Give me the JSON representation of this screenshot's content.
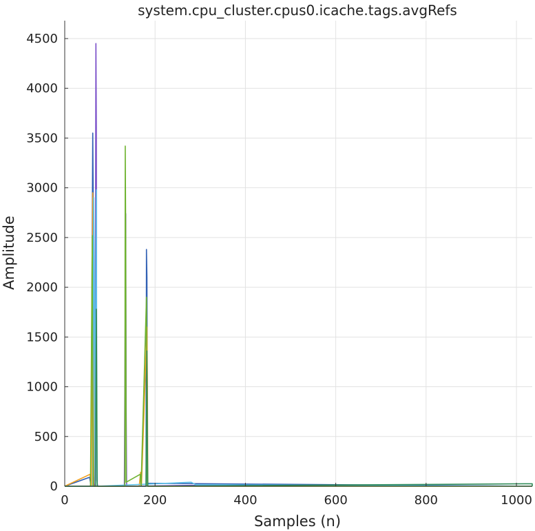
{
  "chart_data": {
    "type": "line",
    "title": "system.cpu_cluster.cpus0.icache.tags.avgRefs",
    "xlabel": "Samples (n)",
    "ylabel": "Amplitude",
    "xlim": [
      0,
      1035
    ],
    "ylim": [
      0,
      4680
    ],
    "xticks": [
      0,
      200,
      400,
      600,
      800,
      1000
    ],
    "yticks": [
      0,
      500,
      1000,
      1500,
      2000,
      2500,
      3000,
      3500,
      4000,
      4500
    ],
    "grid": true,
    "legend": "none",
    "series": [
      {
        "color": "#2f5fb3",
        "points": [
          [
            0,
            0
          ],
          [
            55,
            90
          ],
          [
            58,
            10
          ],
          [
            62,
            3550
          ],
          [
            63,
            2950
          ],
          [
            64,
            100
          ],
          [
            66,
            0
          ],
          [
            180,
            0
          ],
          [
            181,
            2380
          ],
          [
            182,
            2100
          ],
          [
            183,
            30
          ],
          [
            1035,
            0
          ]
        ]
      },
      {
        "color": "#7a4fc9",
        "points": [
          [
            0,
            0
          ],
          [
            66,
            0
          ],
          [
            67,
            200
          ],
          [
            69,
            4450
          ],
          [
            70,
            3600
          ],
          [
            71,
            60
          ],
          [
            73,
            0
          ],
          [
            132,
            0
          ],
          [
            135,
            2740
          ],
          [
            136,
            800
          ],
          [
            137,
            0
          ],
          [
            300,
            10
          ],
          [
            1035,
            0
          ]
        ]
      },
      {
        "color": "#f0a020",
        "points": [
          [
            0,
            0
          ],
          [
            56,
            120
          ],
          [
            59,
            0
          ],
          [
            62,
            2950
          ],
          [
            63,
            1500
          ],
          [
            64,
            0
          ],
          [
            165,
            0
          ],
          [
            168,
            140
          ],
          [
            170,
            10
          ],
          [
            182,
            1600
          ],
          [
            183,
            1000
          ],
          [
            184,
            0
          ],
          [
            1035,
            0
          ]
        ]
      },
      {
        "color": "#5bc0e8",
        "points": [
          [
            0,
            0
          ],
          [
            62,
            0
          ],
          [
            64,
            2900
          ],
          [
            66,
            1800
          ],
          [
            67,
            30
          ],
          [
            70,
            2980
          ],
          [
            71,
            200
          ],
          [
            72,
            0
          ],
          [
            280,
            40
          ],
          [
            290,
            15
          ],
          [
            1035,
            0
          ]
        ]
      },
      {
        "color": "#6fb330",
        "points": [
          [
            0,
            0
          ],
          [
            57,
            0
          ],
          [
            61,
            2520
          ],
          [
            62,
            800
          ],
          [
            63,
            0
          ],
          [
            133,
            0
          ],
          [
            134,
            3420
          ],
          [
            135,
            2500
          ],
          [
            136,
            40
          ],
          [
            167,
            120
          ],
          [
            169,
            0
          ],
          [
            181,
            1900
          ],
          [
            182,
            200
          ],
          [
            183,
            0
          ],
          [
            1035,
            0
          ]
        ]
      },
      {
        "color": "#2e8b57",
        "points": [
          [
            0,
            0
          ],
          [
            68,
            0
          ],
          [
            70,
            1780
          ],
          [
            71,
            900
          ],
          [
            72,
            0
          ],
          [
            180,
            0
          ],
          [
            182,
            1360
          ],
          [
            183,
            400
          ],
          [
            184,
            0
          ],
          [
            1035,
            25
          ],
          [
            1035,
            0
          ]
        ]
      }
    ]
  }
}
